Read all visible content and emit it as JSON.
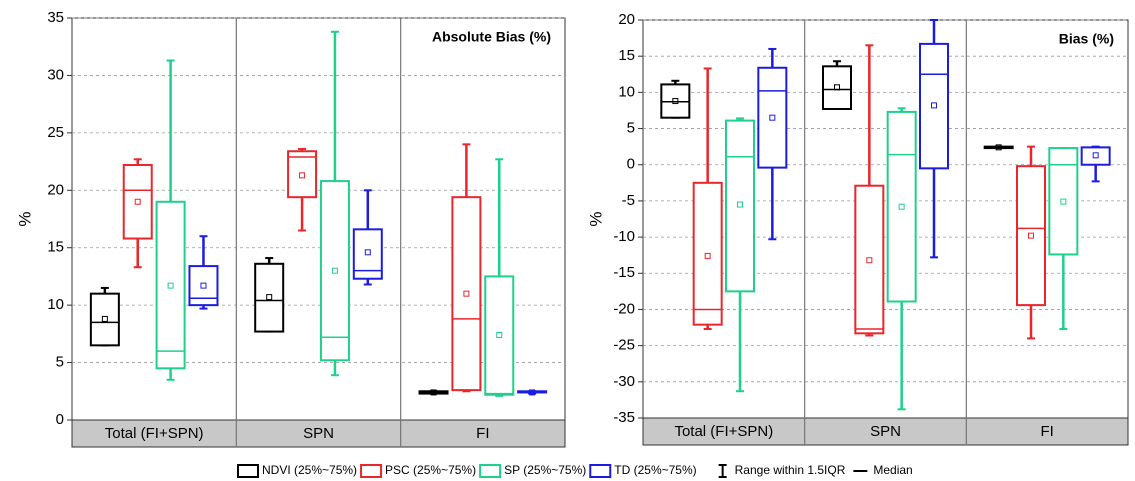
{
  "chart_data": [
    {
      "type": "box",
      "ylabel": "%",
      "panel_label": "Absolute Bias (%)",
      "categories": [
        "Total (FI+SPN)",
        "SPN",
        "FI"
      ],
      "ylim": [
        0,
        35
      ],
      "yticks": [
        0,
        5,
        10,
        15,
        20,
        25,
        30,
        35
      ],
      "grid": true,
      "series": [
        {
          "name": "NDVI (25%~75%)",
          "color": "#000000",
          "whisker_low": [
            6.5,
            7.7,
            2.3
          ],
          "q1": [
            6.5,
            7.7,
            2.3
          ],
          "median": [
            8.5,
            10.4,
            2.4
          ],
          "q3": [
            11,
            13.6,
            2.5
          ],
          "whisker_high": [
            11.5,
            14.1,
            2.5
          ],
          "mean": [
            8.8,
            10.7,
            2.4
          ]
        },
        {
          "name": "PSC (25%~75%)",
          "color": "#e8262b",
          "whisker_low": [
            13.3,
            16.5,
            2.5
          ],
          "q1": [
            15.8,
            19.4,
            2.6
          ],
          "median": [
            20,
            22.9,
            8.8
          ],
          "q3": [
            22.2,
            23.4,
            19.4
          ],
          "whisker_high": [
            22.7,
            23.6,
            24
          ],
          "mean": [
            19,
            21.3,
            11
          ]
        },
        {
          "name": "SP (25%~75%)",
          "color": "#1fd08c",
          "whisker_low": [
            3.5,
            3.9,
            2.1
          ],
          "q1": [
            4.5,
            5.2,
            2.2
          ],
          "median": [
            6,
            7.2,
            2.3
          ],
          "q3": [
            19,
            20.8,
            12.5
          ],
          "whisker_high": [
            31.3,
            33.8,
            22.7
          ],
          "mean": [
            11.7,
            13,
            7.4
          ]
        },
        {
          "name": "TD (25%~75%)",
          "color": "#1c1ce0",
          "whisker_low": [
            9.7,
            11.8,
            2.3
          ],
          "q1": [
            10,
            12.3,
            2.4
          ],
          "median": [
            10.6,
            13,
            2.4
          ],
          "q3": [
            13.4,
            16.6,
            2.5
          ],
          "whisker_high": [
            16,
            20,
            2.5
          ],
          "mean": [
            11.7,
            14.6,
            2.4
          ]
        }
      ]
    },
    {
      "type": "box",
      "ylabel": "%",
      "panel_label": "Bias (%)",
      "categories": [
        "Total (FI+SPN)",
        "SPN",
        "FI"
      ],
      "ylim": [
        -35,
        20
      ],
      "yticks": [
        -35,
        -30,
        -25,
        -20,
        -15,
        -10,
        -5,
        0,
        5,
        10,
        15,
        20
      ],
      "grid": true,
      "series": [
        {
          "color": "#000000",
          "whisker_low": [
            6.5,
            7.7,
            2.3
          ],
          "q1": [
            6.5,
            7.7,
            2.3
          ],
          "median": [
            8.7,
            10.4,
            2.4
          ],
          "q3": [
            11.1,
            13.6,
            2.5
          ],
          "whisker_high": [
            11.6,
            14.3,
            2.5
          ],
          "mean": [
            8.8,
            10.7,
            2.4
          ]
        },
        {
          "color": "#e8262b",
          "whisker_low": [
            -22.7,
            -23.6,
            -24
          ],
          "q1": [
            -22.1,
            -23.3,
            -19.4
          ],
          "median": [
            -20,
            -22.7,
            -8.8
          ],
          "q3": [
            -2.5,
            -2.9,
            -0.2
          ],
          "whisker_high": [
            13.3,
            16.5,
            2.5
          ],
          "mean": [
            -12.6,
            -13.2,
            -9.8
          ]
        },
        {
          "color": "#1fd08c",
          "whisker_low": [
            -31.3,
            -33.8,
            -22.7
          ],
          "q1": [
            -17.5,
            -18.9,
            -12.4
          ],
          "median": [
            1.1,
            1.4,
            0
          ],
          "q3": [
            6.1,
            7.3,
            2.3
          ],
          "whisker_high": [
            6.4,
            7.8,
            2.3
          ],
          "mean": [
            -5.5,
            -5.8,
            -5.1
          ]
        },
        {
          "color": "#1c1ce0",
          "whisker_low": [
            -10.3,
            -12.8,
            -2.3
          ],
          "q1": [
            -0.4,
            -0.5,
            0
          ],
          "median": [
            10.2,
            12.5,
            2.4
          ],
          "q3": [
            13.4,
            16.7,
            2.4
          ],
          "whisker_high": [
            16,
            20,
            2.5
          ],
          "mean": [
            6.5,
            8.2,
            1.3
          ]
        }
      ]
    }
  ],
  "legend": {
    "whisker": "Range within 1.5IQR",
    "median": "Median"
  }
}
